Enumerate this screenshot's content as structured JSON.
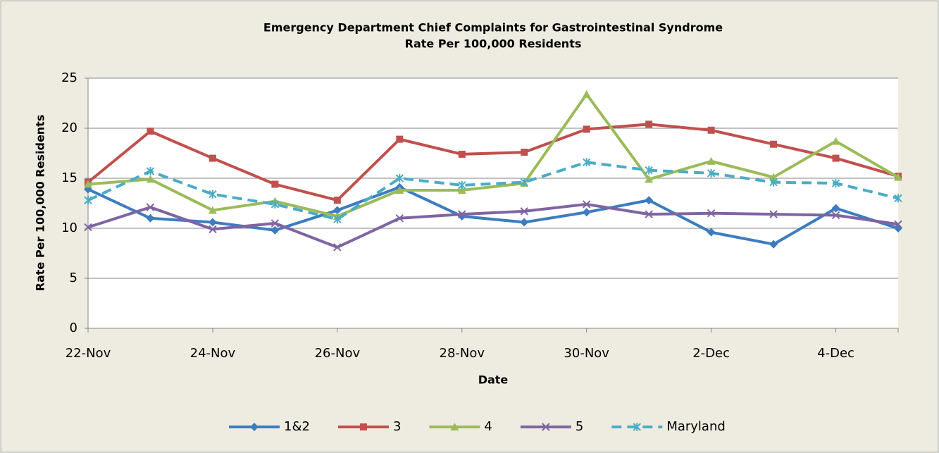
{
  "chart_data": {
    "type": "line",
    "title": "Emergency Department Chief Complaints for Gastrointestinal Syndrome",
    "subtitle": "Rate Per 100,000 Residents",
    "x_label": "Date",
    "y_label": "Rate Per 100,000 Residents",
    "categories": [
      "22-Nov",
      null,
      "24-Nov",
      null,
      "26-Nov",
      null,
      "28-Nov",
      null,
      "30-Nov",
      null,
      "2-Dec",
      null,
      "4-Dec",
      null
    ],
    "series": [
      {
        "name": "1&2",
        "color": "#3d7cc0",
        "marker": "diamond",
        "dashed": false,
        "values": [
          13.9,
          11.0,
          10.6,
          9.8,
          11.8,
          14.1,
          11.2,
          10.6,
          11.6,
          12.8,
          9.6,
          8.4,
          12.0,
          10.0
        ]
      },
      {
        "name": "3",
        "color": "#c0504d",
        "marker": "square",
        "dashed": false,
        "values": [
          14.6,
          19.7,
          17.0,
          14.4,
          12.8,
          18.9,
          17.4,
          17.6,
          19.9,
          20.4,
          19.8,
          18.4,
          17.0,
          15.2
        ]
      },
      {
        "name": "4",
        "color": "#9bbb59",
        "marker": "triangle",
        "dashed": false,
        "values": [
          14.4,
          14.9,
          11.8,
          12.7,
          11.2,
          13.8,
          13.8,
          14.5,
          23.4,
          14.9,
          16.7,
          15.1,
          18.7,
          15.1
        ]
      },
      {
        "name": "5",
        "color": "#8064a2",
        "marker": "x",
        "dashed": false,
        "values": [
          10.1,
          12.1,
          9.9,
          10.5,
          8.1,
          11.0,
          11.4,
          11.7,
          12.4,
          11.4,
          11.5,
          11.4,
          11.3,
          10.4
        ]
      },
      {
        "name": "Maryland",
        "color": "#4bacc6",
        "marker": "star",
        "dashed": true,
        "values": [
          12.8,
          15.7,
          13.4,
          12.4,
          10.9,
          15.0,
          14.3,
          14.6,
          16.6,
          15.8,
          15.5,
          14.6,
          14.5,
          13.0
        ]
      }
    ],
    "ylim": [
      0,
      25
    ],
    "yticks": [
      0,
      5,
      10,
      15,
      20,
      25
    ],
    "grid": true,
    "legend": "bottom"
  }
}
